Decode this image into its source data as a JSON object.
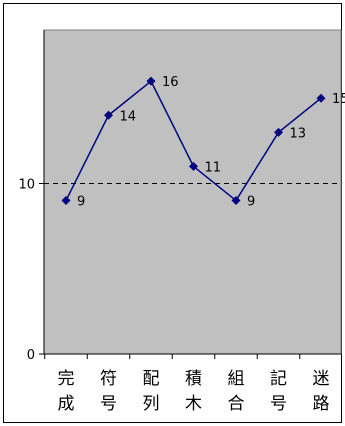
{
  "chart_data": {
    "type": "line",
    "title": "",
    "xlabel": "",
    "ylabel": "",
    "categories": [
      [
        "完",
        "成"
      ],
      [
        "符",
        "号"
      ],
      [
        "配",
        "列"
      ],
      [
        "積",
        "木"
      ],
      [
        "組",
        "合"
      ],
      [
        "記",
        "号"
      ],
      [
        "迷",
        "路"
      ]
    ],
    "series": [
      {
        "values": [
          9,
          14,
          16,
          11,
          9,
          13,
          15
        ]
      }
    ],
    "ylim": [
      0,
      19
    ],
    "y_ticks": [
      0,
      10
    ],
    "reference_line": {
      "value": 10,
      "style": "dashed"
    },
    "data_labels": true,
    "grid": false,
    "legend": "none",
    "colors": {
      "plot_background": "#c0c0c0",
      "line": "#000080",
      "marker": "#000080",
      "reference_line": "#000000"
    }
  }
}
